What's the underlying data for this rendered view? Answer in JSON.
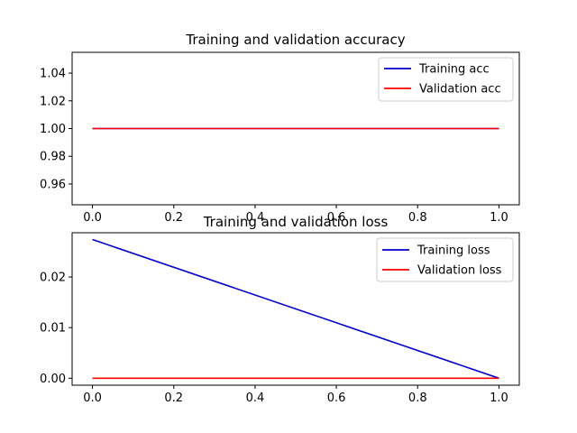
{
  "chart_data": [
    {
      "type": "line",
      "title": "Training and validation accuracy",
      "xlim": [
        -0.05,
        1.05
      ],
      "ylim": [
        0.945,
        1.055
      ],
      "xticks": [
        0,
        0.2,
        0.4,
        0.6,
        0.8,
        1.0
      ],
      "xtick_labels": [
        "0.0",
        "0.2",
        "0.4",
        "0.6",
        "0.8",
        "1.0"
      ],
      "yticks": [
        0.96,
        0.98,
        1.0,
        1.02,
        1.04
      ],
      "ytick_labels": [
        "0.96",
        "0.98",
        "1.00",
        "1.02",
        "1.04"
      ],
      "legend_position": "top-right",
      "grid": false,
      "series": [
        {
          "name": "Training acc",
          "color": "#0000cc",
          "x": [
            0,
            1
          ],
          "y": [
            1.0,
            1.0
          ]
        },
        {
          "name": "Validation acc",
          "color": "#ff0000",
          "x": [
            0,
            1
          ],
          "y": [
            1.0,
            1.0
          ]
        }
      ]
    },
    {
      "type": "line",
      "title": "Training and validation loss",
      "xlim": [
        -0.05,
        1.05
      ],
      "ylim": [
        -0.00137,
        0.02874
      ],
      "xticks": [
        0,
        0.2,
        0.4,
        0.6,
        0.8,
        1.0
      ],
      "xtick_labels": [
        "0.0",
        "0.2",
        "0.4",
        "0.6",
        "0.8",
        "1.0"
      ],
      "yticks": [
        0.0,
        0.01,
        0.02
      ],
      "ytick_labels": [
        "0.00",
        "0.01",
        "0.02"
      ],
      "legend_position": "top-right",
      "grid": false,
      "series": [
        {
          "name": "Training loss",
          "color": "#0000cc",
          "x": [
            0,
            1
          ],
          "y": [
            0.0274,
            0.0
          ]
        },
        {
          "name": "Validation loss",
          "color": "#ff0000",
          "x": [
            0,
            1
          ],
          "y": [
            0.0,
            0.0
          ]
        }
      ]
    }
  ]
}
